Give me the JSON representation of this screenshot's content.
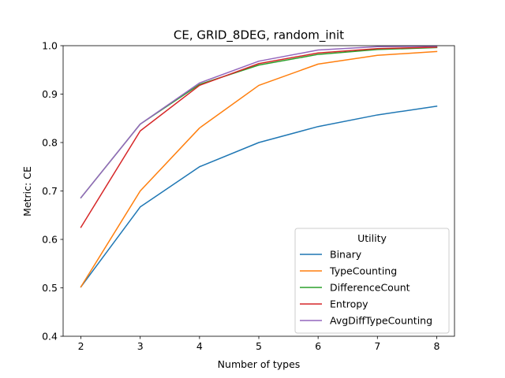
{
  "chart_data": {
    "type": "line",
    "title": "CE, GRID_8DEG, random_init",
    "xlabel": "Number of types",
    "ylabel": "Metric: CE",
    "x": [
      2,
      3,
      4,
      5,
      6,
      7,
      8
    ],
    "xlim": [
      1.7,
      8.3
    ],
    "ylim": [
      0.4,
      1.0
    ],
    "xticks": [
      "2",
      "3",
      "4",
      "5",
      "6",
      "7",
      "8"
    ],
    "yticks": [
      "0.4",
      "0.5",
      "0.6",
      "0.7",
      "0.8",
      "0.9",
      "1.0"
    ],
    "grid": false,
    "legend": {
      "title": "Utility",
      "placement": "lower-right"
    },
    "series": [
      {
        "name": "Binary",
        "color": "#1f77b4",
        "values": [
          0.502,
          0.667,
          0.75,
          0.8,
          0.833,
          0.857,
          0.875
        ]
      },
      {
        "name": "TypeCounting",
        "color": "#ff7f0e",
        "values": [
          0.502,
          0.7,
          0.83,
          0.918,
          0.962,
          0.98,
          0.988
        ]
      },
      {
        "name": "DifferenceCount",
        "color": "#2ca02c",
        "values": [
          0.686,
          0.838,
          0.92,
          0.96,
          0.982,
          0.992,
          0.996
        ]
      },
      {
        "name": "Entropy",
        "color": "#d62728",
        "values": [
          0.625,
          0.824,
          0.918,
          0.963,
          0.985,
          0.994,
          0.997
        ]
      },
      {
        "name": "AvgDiffTypeCounting",
        "color": "#9467bd",
        "values": [
          0.686,
          0.838,
          0.923,
          0.968,
          0.991,
          0.998,
          0.999
        ]
      }
    ]
  }
}
